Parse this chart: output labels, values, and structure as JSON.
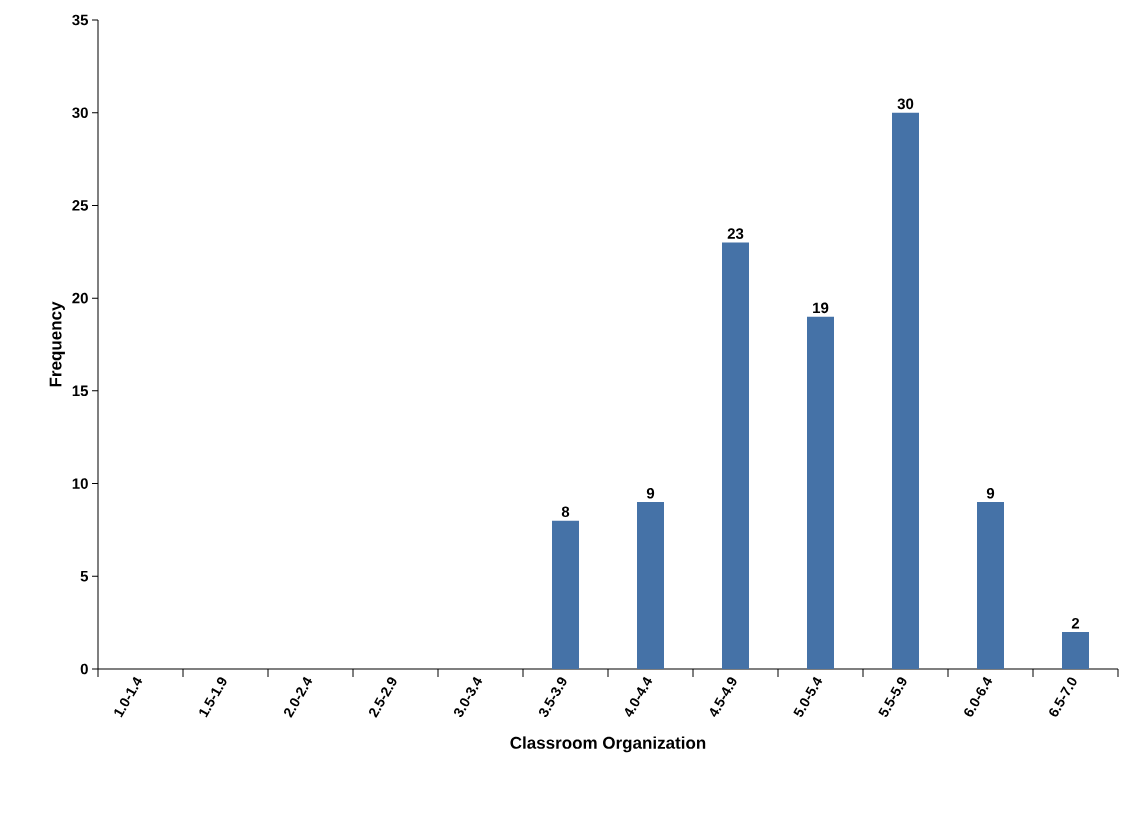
{
  "chart_data": {
    "type": "bar",
    "xlabel": "Classroom Organization",
    "ylabel": "Frequency",
    "categories": [
      "1.0-1.4",
      "1.5-1.9",
      "2.0-2.4",
      "2.5-2.9",
      "3.0-3.4",
      "3.5-3.9",
      "4.0-4.4",
      "4.5-4.9",
      "5.0-5.4",
      "5.5-5.9",
      "6.0-6.4",
      "6.5-7.0"
    ],
    "values": [
      0,
      0,
      0,
      0,
      0,
      8,
      9,
      23,
      19,
      30,
      9,
      2
    ],
    "value_labels": [
      null,
      null,
      null,
      null,
      null,
      "8",
      "9",
      "23",
      "19",
      "30",
      "9",
      "2"
    ],
    "color": "#4572a7",
    "ylim": [
      0,
      35
    ],
    "yticks": [
      0,
      5,
      10,
      15,
      20,
      25,
      30,
      35
    ]
  }
}
